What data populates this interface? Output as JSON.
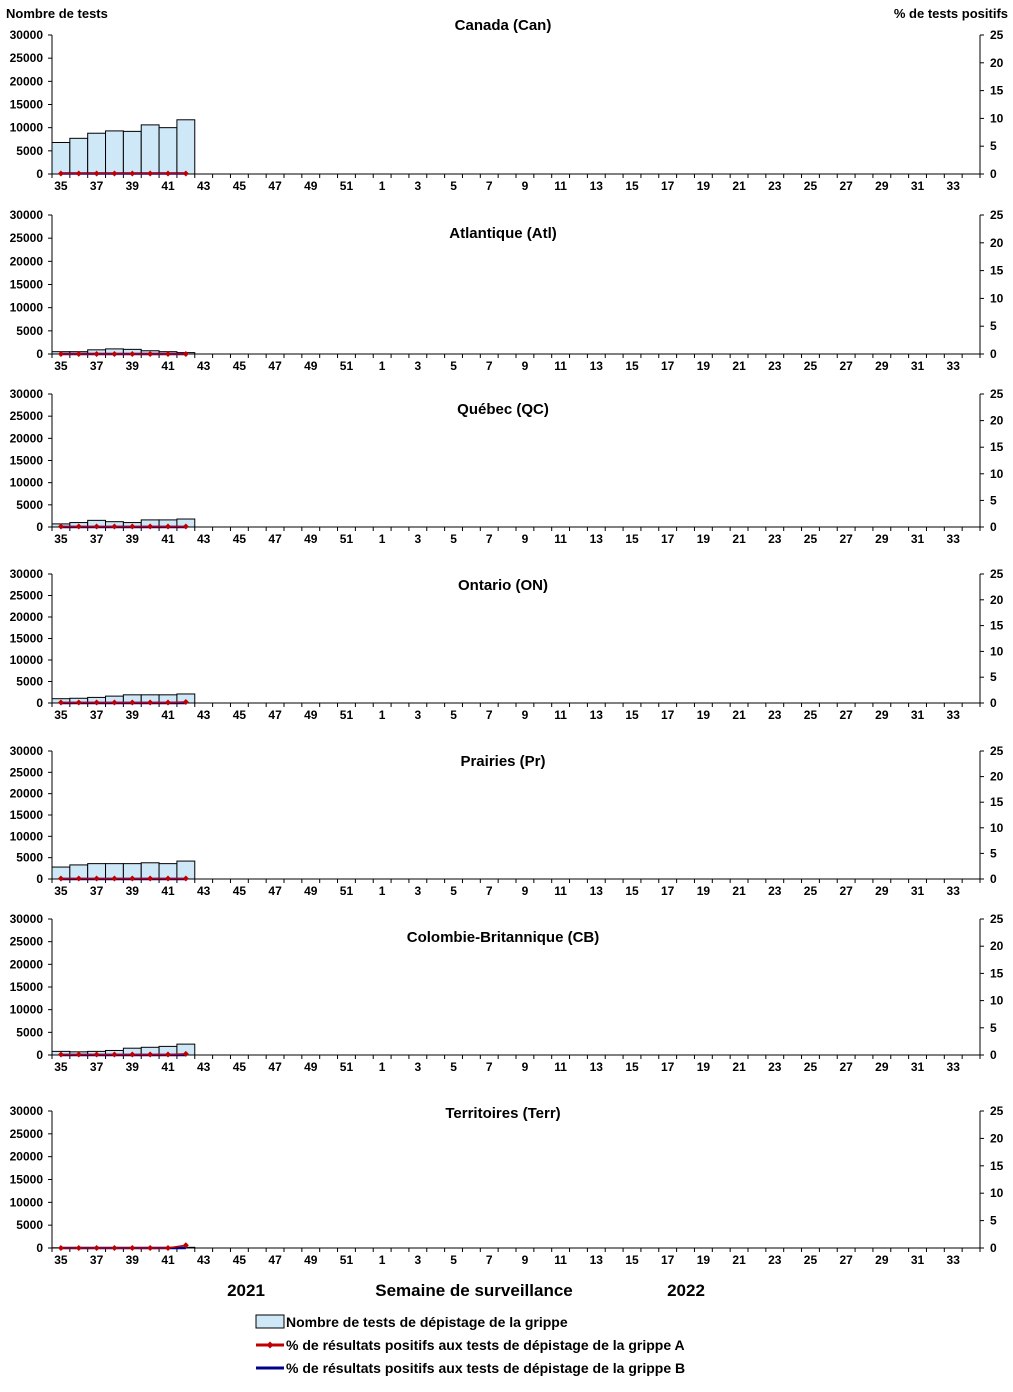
{
  "header": {
    "left_axis_title": "Nombre de tests",
    "right_axis_title": "%  de tests positifs"
  },
  "footer": {
    "year_left": "2021",
    "xlabel": "Semaine de surveillance",
    "year_right": "2022"
  },
  "legend": {
    "bars": "Nombre de tests de dépistage de la grippe",
    "flu_a": "% de résultats positifs aux tests de dépistage de la grippe A",
    "flu_b": "% de résultats positifs aux tests de dépistage de la grippe B"
  },
  "colors": {
    "bar_fill": "#cfe8f8",
    "bar_stroke": "#000000",
    "flu_a": "#c00000",
    "flu_b": "#00008b"
  },
  "chart_data": [
    {
      "type": "bar",
      "title": "Canada (Can)",
      "x_ticks": [
        "35",
        "37",
        "39",
        "41",
        "43",
        "45",
        "47",
        "49",
        "51",
        "1",
        "3",
        "5",
        "7",
        "9",
        "11",
        "13",
        "15",
        "17",
        "19",
        "21",
        "23",
        "25",
        "27",
        "29",
        "31",
        "33"
      ],
      "weeks": [
        "35",
        "36",
        "37",
        "38",
        "39",
        "40",
        "41",
        "42"
      ],
      "ylim": [
        0,
        30000
      ],
      "yticks": [
        0,
        5000,
        10000,
        15000,
        20000,
        25000,
        30000
      ],
      "y2lim": [
        0,
        25
      ],
      "y2ticks": [
        0,
        5,
        10,
        15,
        20,
        25
      ],
      "series": [
        {
          "name": "Nombre de tests de dépistage de la grippe",
          "values": [
            6800,
            7700,
            8800,
            9300,
            9200,
            10600,
            10000,
            11700
          ]
        },
        {
          "name": "% de résultats positifs aux tests de dépistage de la grippe A",
          "values": [
            0.1,
            0.1,
            0.1,
            0.1,
            0.1,
            0.1,
            0.1,
            0.1
          ]
        },
        {
          "name": "% de résultats positifs aux tests de dépistage de la grippe B",
          "values": [
            0.1,
            0.1,
            0.1,
            0.1,
            0.1,
            0.1,
            0.1,
            0.1
          ]
        }
      ]
    },
    {
      "type": "bar",
      "title": "Atlantique (Atl)",
      "x_ticks": [
        "35",
        "37",
        "39",
        "41",
        "43",
        "45",
        "47",
        "49",
        "51",
        "1",
        "3",
        "5",
        "7",
        "9",
        "11",
        "13",
        "15",
        "17",
        "19",
        "21",
        "23",
        "25",
        "27",
        "29",
        "31",
        "33"
      ],
      "weeks": [
        "35",
        "36",
        "37",
        "38",
        "39",
        "40",
        "41",
        "42"
      ],
      "ylim": [
        0,
        30000
      ],
      "yticks": [
        0,
        5000,
        10000,
        15000,
        20000,
        25000,
        30000
      ],
      "y2lim": [
        0,
        25
      ],
      "y2ticks": [
        0,
        5,
        10,
        15,
        20,
        25
      ],
      "series": [
        {
          "name": "Nombre de tests de dépistage de la grippe",
          "values": [
            500,
            500,
            900,
            1100,
            1000,
            700,
            500,
            300
          ]
        },
        {
          "name": "% de résultats positifs aux tests de dépistage de la grippe A",
          "values": [
            0,
            0,
            0,
            0,
            0,
            0,
            0,
            0
          ]
        },
        {
          "name": "% de résultats positifs aux tests de dépistage de la grippe B",
          "values": [
            0,
            0,
            0,
            0,
            0,
            0,
            0,
            0
          ]
        }
      ]
    },
    {
      "type": "bar",
      "title": "Québec (QC)",
      "x_ticks": [
        "35",
        "37",
        "39",
        "41",
        "43",
        "45",
        "47",
        "49",
        "51",
        "1",
        "3",
        "5",
        "7",
        "9",
        "11",
        "13",
        "15",
        "17",
        "19",
        "21",
        "23",
        "25",
        "27",
        "29",
        "31",
        "33"
      ],
      "weeks": [
        "35",
        "36",
        "37",
        "38",
        "39",
        "40",
        "41",
        "42"
      ],
      "ylim": [
        0,
        30000
      ],
      "yticks": [
        0,
        5000,
        10000,
        15000,
        20000,
        25000,
        30000
      ],
      "y2lim": [
        0,
        25
      ],
      "y2ticks": [
        0,
        5,
        10,
        15,
        20,
        25
      ],
      "series": [
        {
          "name": "Nombre de tests de dépistage de la grippe",
          "values": [
            700,
            1000,
            1500,
            1200,
            1000,
            1600,
            1600,
            1800
          ]
        },
        {
          "name": "% de résultats positifs aux tests de dépistage de la grippe A",
          "values": [
            0.1,
            0.1,
            0.1,
            0.1,
            0.1,
            0.1,
            0.1,
            0.1
          ]
        },
        {
          "name": "% de résultats positifs aux tests de dépistage de la grippe B",
          "values": [
            0,
            0,
            0,
            0,
            0,
            0,
            0,
            0
          ]
        }
      ]
    },
    {
      "type": "bar",
      "title": "Ontario (ON)",
      "x_ticks": [
        "35",
        "37",
        "39",
        "41",
        "43",
        "45",
        "47",
        "49",
        "51",
        "1",
        "3",
        "5",
        "7",
        "9",
        "11",
        "13",
        "15",
        "17",
        "19",
        "21",
        "23",
        "25",
        "27",
        "29",
        "31",
        "33"
      ],
      "weeks": [
        "35",
        "36",
        "37",
        "38",
        "39",
        "40",
        "41",
        "42"
      ],
      "ylim": [
        0,
        30000
      ],
      "yticks": [
        0,
        5000,
        10000,
        15000,
        20000,
        25000,
        30000
      ],
      "y2lim": [
        0,
        25
      ],
      "y2ticks": [
        0,
        5,
        10,
        15,
        20,
        25
      ],
      "series": [
        {
          "name": "Nombre de tests de dépistage de la grippe",
          "values": [
            1000,
            1100,
            1300,
            1600,
            1900,
            1900,
            1900,
            2100
          ]
        },
        {
          "name": "% de résultats positifs aux tests de dépistage de la grippe A",
          "values": [
            0.1,
            0.1,
            0.1,
            0.1,
            0.1,
            0.1,
            0.1,
            0.2
          ]
        },
        {
          "name": "% de résultats positifs aux tests de dépistage de la grippe B",
          "values": [
            0,
            0,
            0,
            0,
            0,
            0,
            0,
            0
          ]
        }
      ]
    },
    {
      "type": "bar",
      "title": "Prairies (Pr)",
      "x_ticks": [
        "35",
        "37",
        "39",
        "41",
        "43",
        "45",
        "47",
        "49",
        "51",
        "1",
        "3",
        "5",
        "7",
        "9",
        "11",
        "13",
        "15",
        "17",
        "19",
        "21",
        "23",
        "25",
        "27",
        "29",
        "31",
        "33"
      ],
      "weeks": [
        "35",
        "36",
        "37",
        "38",
        "39",
        "40",
        "41",
        "42"
      ],
      "ylim": [
        0,
        30000
      ],
      "yticks": [
        0,
        5000,
        10000,
        15000,
        20000,
        25000,
        30000
      ],
      "y2lim": [
        0,
        25
      ],
      "y2ticks": [
        0,
        5,
        10,
        15,
        20,
        25
      ],
      "series": [
        {
          "name": "Nombre de tests de dépistage de la grippe",
          "values": [
            2800,
            3300,
            3600,
            3600,
            3600,
            3800,
            3600,
            4200
          ]
        },
        {
          "name": "% de résultats positifs aux tests de dépistage de la grippe A",
          "values": [
            0.1,
            0.1,
            0.1,
            0.1,
            0.1,
            0.1,
            0.1,
            0.1
          ]
        },
        {
          "name": "% de résultats positifs aux tests de dépistage de la grippe B",
          "values": [
            0,
            0,
            0,
            0,
            0,
            0,
            0,
            0
          ]
        }
      ]
    },
    {
      "type": "bar",
      "title": "Colombie-Britannique (CB)",
      "x_ticks": [
        "35",
        "37",
        "39",
        "41",
        "43",
        "45",
        "47",
        "49",
        "51",
        "1",
        "3",
        "5",
        "7",
        "9",
        "11",
        "13",
        "15",
        "17",
        "19",
        "21",
        "23",
        "25",
        "27",
        "29",
        "31",
        "33"
      ],
      "weeks": [
        "35",
        "36",
        "37",
        "38",
        "39",
        "40",
        "41",
        "42"
      ],
      "ylim": [
        0,
        30000
      ],
      "yticks": [
        0,
        5000,
        10000,
        15000,
        20000,
        25000,
        30000
      ],
      "y2lim": [
        0,
        25
      ],
      "y2ticks": [
        0,
        5,
        10,
        15,
        20,
        25
      ],
      "series": [
        {
          "name": "Nombre de tests de dépistage de la grippe",
          "values": [
            800,
            700,
            800,
            1000,
            1500,
            1700,
            1900,
            2400
          ]
        },
        {
          "name": "% de résultats positifs aux tests de dépistage de la grippe A",
          "values": [
            0.1,
            0.1,
            0.1,
            0.1,
            0.1,
            0.1,
            0.1,
            0.2
          ]
        },
        {
          "name": "% de résultats positifs aux tests de dépistage de la grippe B",
          "values": [
            0,
            0,
            0,
            0,
            0,
            0,
            0,
            0
          ]
        }
      ]
    },
    {
      "type": "bar",
      "title": "Territoires (Terr)",
      "x_ticks": [
        "35",
        "37",
        "39",
        "41",
        "43",
        "45",
        "47",
        "49",
        "51",
        "1",
        "3",
        "5",
        "7",
        "9",
        "11",
        "13",
        "15",
        "17",
        "19",
        "21",
        "23",
        "25",
        "27",
        "29",
        "31",
        "33"
      ],
      "weeks": [
        "35",
        "36",
        "37",
        "38",
        "39",
        "40",
        "41",
        "42"
      ],
      "ylim": [
        0,
        30000
      ],
      "yticks": [
        0,
        5000,
        10000,
        15000,
        20000,
        25000,
        30000
      ],
      "y2lim": [
        0,
        25
      ],
      "y2ticks": [
        0,
        5,
        10,
        15,
        20,
        25
      ],
      "series": [
        {
          "name": "Nombre de tests de dépistage de la grippe",
          "values": [
            50,
            60,
            80,
            80,
            90,
            100,
            120,
            150
          ]
        },
        {
          "name": "% de résultats positifs aux tests de dépistage de la grippe A",
          "values": [
            0,
            0,
            0,
            0,
            0,
            0,
            0,
            0.5
          ]
        },
        {
          "name": "% de résultats positifs aux tests de dépistage de la grippe B",
          "values": [
            0,
            0,
            0,
            0,
            0,
            0,
            0,
            0
          ]
        }
      ]
    }
  ]
}
